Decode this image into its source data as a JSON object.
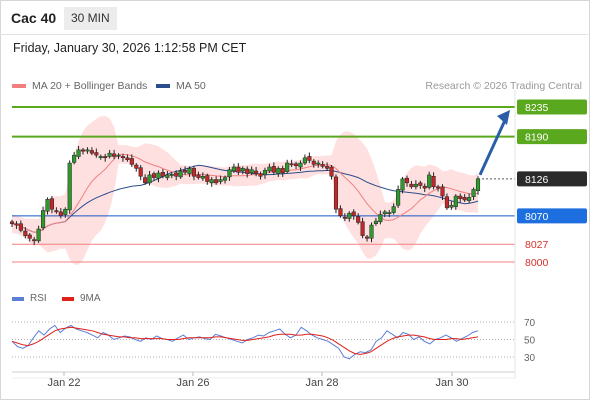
{
  "header": {
    "instrument": "Cac 40",
    "timeframe": "30 MIN"
  },
  "datetime": "Friday, January 30, 2026 1:12:58 PM CET",
  "legend": {
    "main": [
      {
        "name": "MA 20 + Bollinger Bands",
        "color": "#f08080"
      },
      {
        "name": "MA 50",
        "color": "#2b4d8c"
      }
    ],
    "credit": "Research © 2026 Trading Central"
  },
  "rsi_legend": [
    {
      "name": "RSI",
      "color": "#5b7fd6"
    },
    {
      "name": "9MA",
      "color": "#e0201a"
    }
  ],
  "chart_data": {
    "type": "candlestick",
    "x_ticks": [
      "Jan 22",
      "Jan 26",
      "Jan 28",
      "Jan 30"
    ],
    "close_path": [
      8058,
      8056,
      8048,
      8040,
      8036,
      8032,
      8050,
      8078,
      8095,
      8080,
      8076,
      8070,
      8080,
      8150,
      8162,
      8170,
      8168,
      8170,
      8165,
      8162,
      8160,
      8158,
      8165,
      8160,
      8162,
      8158,
      8155,
      8148,
      8142,
      8130,
      8120,
      8132,
      8128,
      8135,
      8130,
      8132,
      8133,
      8130,
      8138,
      8136,
      8142,
      8130,
      8128,
      8130,
      8122,
      8125,
      8120,
      8125,
      8128,
      8140,
      8144,
      8136,
      8142,
      8134,
      8140,
      8134,
      8130,
      8139,
      8144,
      8136,
      8142,
      8135,
      8150,
      8148,
      8146,
      8150,
      8158,
      8154,
      8148,
      8150,
      8145,
      8142,
      8130,
      8080,
      8070,
      8066,
      8074,
      8070,
      8060,
      8040,
      8036,
      8056,
      8062,
      8072,
      8076,
      8075,
      8084,
      8110,
      8126,
      8120,
      8114,
      8118,
      8116,
      8112,
      8132,
      8114,
      8112,
      8100,
      8082,
      8086,
      8100,
      8096,
      8094,
      8098,
      8110,
      8126
    ],
    "last_price": 8126,
    "price_levels": [
      {
        "value": 8235,
        "label": "8235",
        "kind": "target"
      },
      {
        "value": 8190,
        "label": "8190",
        "kind": "resistance"
      },
      {
        "value": 8126,
        "label": "8126",
        "kind": "last"
      },
      {
        "value": 8070,
        "label": "8070",
        "kind": "pivot"
      },
      {
        "value": 8027,
        "label": "8027",
        "kind": "support"
      },
      {
        "value": 8000,
        "label": "8000",
        "kind": "support"
      }
    ],
    "rsi": {
      "levels": [
        70,
        50,
        30
      ],
      "range": [
        20,
        80
      ],
      "series": [
        48,
        42,
        40,
        43,
        52,
        60,
        55,
        62,
        66,
        58,
        63,
        66,
        62,
        60,
        58,
        55,
        52,
        58,
        55,
        50,
        52,
        54,
        53,
        50,
        48,
        52,
        50,
        54,
        51,
        50,
        48,
        52,
        55,
        50,
        52,
        53,
        51,
        50,
        56,
        54,
        52,
        50,
        48,
        46,
        50,
        52,
        55,
        54,
        58,
        60,
        62,
        56,
        52,
        55,
        64,
        60,
        55,
        52,
        50,
        48,
        44,
        40,
        30,
        28,
        33,
        36,
        35,
        38,
        48,
        52,
        60,
        56,
        52,
        58,
        56,
        50,
        53,
        48,
        45,
        50,
        52,
        55,
        52,
        48,
        51,
        54,
        58,
        60
      ],
      "ma9": [
        48,
        46,
        44,
        43,
        45,
        48,
        52,
        56,
        60,
        62,
        63,
        64,
        63,
        62,
        61,
        60,
        58,
        56,
        55,
        54,
        53,
        53,
        52,
        52,
        51,
        51,
        51,
        51,
        51,
        50,
        50,
        50,
        51,
        52,
        52,
        52,
        52,
        52,
        53,
        53,
        52,
        51,
        50,
        49,
        49,
        50,
        51,
        52,
        53,
        55,
        56,
        56,
        56,
        55,
        55,
        56,
        56,
        55,
        54,
        52,
        49,
        45,
        41,
        37,
        34,
        33,
        34,
        36,
        40,
        44,
        48,
        51,
        53,
        54,
        55,
        55,
        54,
        53,
        51,
        50,
        50,
        50,
        51,
        51,
        50,
        51,
        52,
        53
      ]
    }
  }
}
